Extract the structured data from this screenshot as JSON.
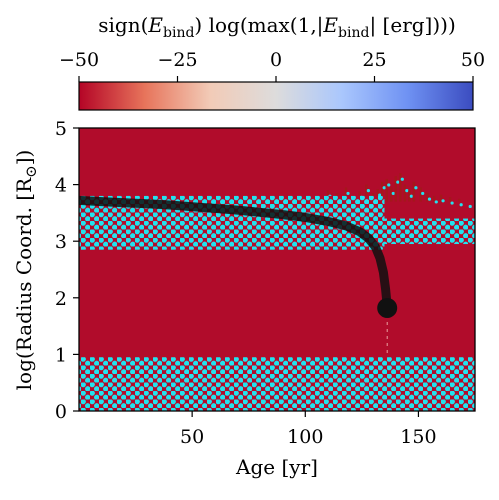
{
  "chart_data": {
    "type": "heatmap",
    "colorbar": {
      "label": "sign(E_bind) log(max(1,|E_bind| [erg])))",
      "label_main": "sign(",
      "label_E": "E",
      "label_bind_sub": "bind",
      "label_mid": ") log(max(1,|",
      "label_end": "| [erg])))",
      "ticks": [
        -50,
        -25,
        0,
        25,
        50
      ],
      "tick_labels": [
        "−50",
        "−25",
        "0",
        "25",
        "50"
      ],
      "vmin": -50,
      "vmax": 50,
      "colormap": "coolwarm_r",
      "colors": [
        "#b40426",
        "#e7745b",
        "#f2cbb7",
        "#dddcdc",
        "#aac7fd",
        "#6f92f3",
        "#3b4cc0"
      ],
      "orientation": "horizontal",
      "location": "top"
    },
    "xlabel": "Age [yr]",
    "ylabel": "log(Radius Coord. [R⊙])",
    "ylabel_main": "log(Radius Coord. [R",
    "ylabel_sun": "⊙",
    "ylabel_end": "])",
    "xlim": [
      0,
      175
    ],
    "ylim": [
      0,
      5
    ],
    "xticks": [
      50,
      100,
      150
    ],
    "yticks": [
      0,
      1,
      2,
      3,
      4,
      5
    ],
    "background_value": -45,
    "background_color": "#b10c2b",
    "hatched_regions": {
      "color": "#22e3ef",
      "note": "convective zones shown as cyan dot hatching",
      "bands": [
        {
          "x": [
            0,
            175
          ],
          "y": [
            0.0,
            0.95
          ]
        },
        {
          "x": [
            0,
            135
          ],
          "y": [
            2.85,
            3.8
          ]
        },
        {
          "x": [
            135,
            175
          ],
          "y": [
            2.95,
            3.4
          ]
        }
      ]
    },
    "surface_spikes": {
      "color": "#a5171c",
      "x": [
        110,
        114,
        118,
        121,
        124,
        127,
        130,
        132,
        134,
        136,
        138,
        140,
        142,
        144,
        146,
        148,
        151,
        154,
        157,
        160,
        164,
        168,
        172
      ],
      "top": [
        3.9,
        3.85,
        3.95,
        3.8,
        3.88,
        4.0,
        3.85,
        3.92,
        4.05,
        4.1,
        3.95,
        4.15,
        4.2,
        4.0,
        3.9,
        4.05,
        3.95,
        3.85,
        3.8,
        3.82,
        3.78,
        3.75,
        3.72
      ]
    },
    "track": {
      "name": "",
      "color": "#111111",
      "x": [
        0,
        10,
        20,
        30,
        40,
        50,
        60,
        70,
        80,
        90,
        100,
        110,
        118,
        124,
        128,
        131,
        133,
        134.5,
        135.5,
        136,
        136.2
      ],
      "y": [
        3.72,
        3.7,
        3.68,
        3.66,
        3.64,
        3.61,
        3.58,
        3.55,
        3.51,
        3.47,
        3.42,
        3.35,
        3.27,
        3.17,
        3.05,
        2.9,
        2.7,
        2.45,
        2.15,
        1.95,
        1.82
      ],
      "endpoint": {
        "x": 136.2,
        "y": 1.82
      }
    }
  }
}
